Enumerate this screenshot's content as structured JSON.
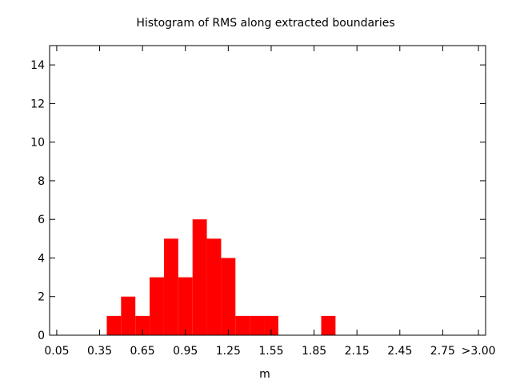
{
  "chart_data": {
    "type": "bar",
    "title": "Histogram of RMS along extracted boundaries",
    "xlabel": "m",
    "ylabel": "",
    "bar_color": "#ff0000",
    "bin_width": 0.1,
    "xlim": [
      0.0,
      3.05
    ],
    "ylim": [
      0,
      15
    ],
    "x_ticks": [
      "0.05",
      "0.35",
      "0.65",
      "0.95",
      "1.25",
      "1.55",
      "1.85",
      "2.15",
      "2.45",
      "2.75",
      ">3.00"
    ],
    "x_tick_values": [
      0.05,
      0.35,
      0.65,
      0.95,
      1.25,
      1.55,
      1.85,
      2.15,
      2.45,
      2.75,
      3.0
    ],
    "y_ticks": [
      "0",
      "2",
      "4",
      "6",
      "8",
      "10",
      "12",
      "14"
    ],
    "y_tick_values": [
      0,
      2,
      4,
      6,
      8,
      10,
      12,
      14
    ],
    "bins": [
      {
        "x": 0.45,
        "value": 1
      },
      {
        "x": 0.55,
        "value": 2
      },
      {
        "x": 0.65,
        "value": 1
      },
      {
        "x": 0.75,
        "value": 3
      },
      {
        "x": 0.85,
        "value": 5
      },
      {
        "x": 0.95,
        "value": 3
      },
      {
        "x": 1.05,
        "value": 6
      },
      {
        "x": 1.15,
        "value": 5
      },
      {
        "x": 1.25,
        "value": 4
      },
      {
        "x": 1.35,
        "value": 1
      },
      {
        "x": 1.45,
        "value": 1
      },
      {
        "x": 1.55,
        "value": 1
      },
      {
        "x": 1.95,
        "value": 1
      }
    ]
  }
}
